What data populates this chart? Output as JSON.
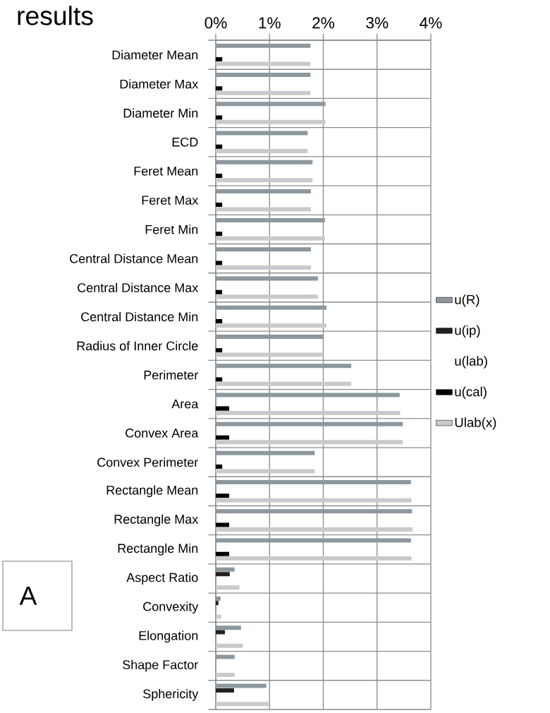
{
  "chart_data": {
    "type": "bar",
    "orientation": "horizontal",
    "title": "results",
    "categories": [
      "Diameter Mean",
      "Diameter Max",
      "Diameter Min",
      "ECD",
      "Feret Mean",
      "Feret Max",
      "Feret Min",
      "Central Distance Mean",
      "Central Distance Max",
      "Central Distance Min",
      "Radius of Inner Circle",
      "Perimeter",
      "Area",
      "Convex Area",
      "Convex Perimeter",
      "Rectangle Mean",
      "Rectangle Max",
      "Rectangle Min",
      "Aspect Ratio",
      "Convexity",
      "Elongation",
      "Shape Factor",
      "Sphericity"
    ],
    "series": [
      {
        "name": "u(R)",
        "color": "#8c979e",
        "values": [
          1.76,
          1.76,
          2.04,
          1.71,
          1.8,
          1.77,
          2.03,
          1.77,
          1.9,
          2.06,
          2.0,
          2.52,
          3.42,
          3.48,
          1.84,
          3.63,
          3.65,
          3.63,
          0.35,
          0.09,
          0.47,
          0.35,
          0.94
        ]
      },
      {
        "name": "u(ip)",
        "color": "#231f20",
        "values": [
          0,
          0,
          0,
          0,
          0,
          0,
          0,
          0,
          0,
          0,
          0,
          0,
          0,
          0,
          0,
          0,
          0,
          0,
          0.26,
          0.05,
          0.17,
          0,
          0.34
        ]
      },
      {
        "name": "u(lab)",
        "values": [
          null,
          null,
          null,
          null,
          null,
          null,
          null,
          null,
          null,
          null,
          null,
          null,
          null,
          null,
          null,
          null,
          null,
          null,
          null,
          null,
          null,
          null,
          null
        ]
      },
      {
        "name": "u(cal)",
        "color": "#000000",
        "values": [
          0.12,
          0.12,
          0.12,
          0.12,
          0.12,
          0.12,
          0.12,
          0.12,
          0.12,
          0.12,
          0.12,
          0.12,
          0.25,
          0.25,
          0.12,
          0.25,
          0.25,
          0.25,
          0,
          0,
          0,
          0,
          0
        ]
      },
      {
        "name": "Ulab(x)",
        "color": "#c8cbcd",
        "values": [
          1.76,
          1.76,
          2.04,
          1.71,
          1.8,
          1.77,
          2.03,
          1.77,
          1.9,
          2.06,
          2.0,
          2.52,
          3.43,
          3.48,
          1.84,
          3.64,
          3.66,
          3.64,
          0.44,
          0.1,
          0.5,
          0.35,
          0.99
        ]
      }
    ],
    "xlim": [
      0,
      4
    ],
    "xticks": [
      {
        "value": 0,
        "label": "0%"
      },
      {
        "value": 1,
        "label": "1%"
      },
      {
        "value": 2,
        "label": "2%"
      },
      {
        "value": 3,
        "label": "3%"
      },
      {
        "value": 4,
        "label": "4%"
      }
    ],
    "grid": "x",
    "legend": "right",
    "annotations": [
      "A"
    ]
  }
}
